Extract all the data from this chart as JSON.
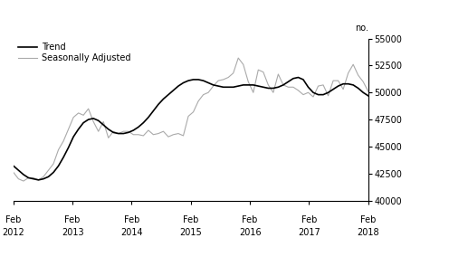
{
  "title": "",
  "ylabel": "no.",
  "ylim": [
    40000,
    55000
  ],
  "yticks": [
    40000,
    42500,
    45000,
    47500,
    50000,
    52500,
    55000
  ],
  "legend_entries": [
    "Trend",
    "Seasonally Adjusted"
  ],
  "trend_color": "#000000",
  "sa_color": "#aaaaaa",
  "background_color": "#ffffff",
  "trend_data": [
    43200,
    42800,
    42400,
    42100,
    42000,
    41900,
    42000,
    42200,
    42600,
    43200,
    44000,
    44900,
    45900,
    46600,
    47200,
    47500,
    47600,
    47400,
    47000,
    46600,
    46300,
    46200,
    46200,
    46300,
    46500,
    46800,
    47200,
    47700,
    48300,
    48900,
    49400,
    49800,
    50200,
    50600,
    50900,
    51100,
    51200,
    51200,
    51100,
    50900,
    50700,
    50600,
    50500,
    50500,
    50500,
    50600,
    50700,
    50700,
    50700,
    50600,
    50500,
    50400,
    50400,
    50500,
    50700,
    51000,
    51300,
    51400,
    51200,
    50500,
    50000,
    49800,
    49800,
    50000,
    50300,
    50600,
    50800,
    50800,
    50700,
    50400,
    50000,
    49700
  ],
  "sa_data": [
    42600,
    42000,
    41800,
    42100,
    42100,
    41900,
    42200,
    42800,
    43400,
    44700,
    45500,
    46600,
    47700,
    48100,
    47900,
    48500,
    47300,
    46400,
    47300,
    45800,
    46400,
    46200,
    46400,
    46400,
    46100,
    46100,
    46000,
    46500,
    46100,
    46200,
    46400,
    45900,
    46100,
    46200,
    46000,
    47800,
    48200,
    49200,
    49800,
    50000,
    50600,
    51100,
    51200,
    51400,
    51800,
    53200,
    52600,
    51000,
    50000,
    52100,
    51900,
    50700,
    50000,
    51700,
    50700,
    50500,
    50500,
    50200,
    49800,
    50000,
    49600,
    50600,
    50700,
    49700,
    51100,
    51100,
    50300,
    51800,
    52600,
    51600,
    51000,
    50100
  ]
}
